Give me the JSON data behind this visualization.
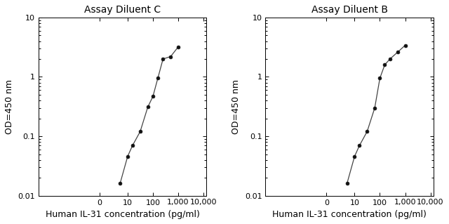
{
  "chart1_title": "Assay Diluent C",
  "chart2_title": "Assay Diluent B",
  "xlabel": "Human IL-31 concentration (pg/ml)",
  "ylabel": "OD=450 nm",
  "chart1_x": [
    5,
    10,
    15.6,
    31.25,
    62.5,
    100,
    156,
    250,
    500,
    1000
  ],
  "chart1_y": [
    0.016,
    0.046,
    0.07,
    0.12,
    0.31,
    0.47,
    0.95,
    2.0,
    2.2,
    3.2
  ],
  "chart2_x": [
    5,
    10,
    15.6,
    31.25,
    62.5,
    100,
    156,
    250,
    500,
    1000
  ],
  "chart2_y": [
    0.016,
    0.046,
    0.07,
    0.12,
    0.3,
    0.95,
    1.6,
    2.0,
    2.6,
    3.4
  ],
  "line_color": "#444444",
  "marker_color": "#111111",
  "bg_color": "#ffffff",
  "xtick_positions": [
    0,
    10,
    100,
    1000,
    10000
  ],
  "xtick_labels": [
    "0",
    "10",
    "100",
    "1,000",
    "10,000"
  ],
  "yticks": [
    0.01,
    0.1,
    1,
    10
  ],
  "ytick_labels": [
    "0.01",
    "0.1",
    "1",
    "10"
  ],
  "title_fontsize": 10,
  "label_fontsize": 9,
  "tick_fontsize": 8
}
